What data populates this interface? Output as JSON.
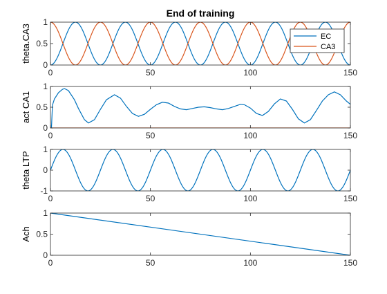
{
  "figure": {
    "title": "End of training"
  },
  "chart_data": [
    {
      "type": "line",
      "ylabel": "theta.CA3",
      "xlim": [
        0,
        150
      ],
      "ylim": [
        0,
        1
      ],
      "xticks": [
        0,
        50,
        100,
        150
      ],
      "yticks": [
        0,
        0.5,
        1
      ],
      "xtick_labels": [
        "0",
        "50",
        "100",
        "150"
      ],
      "ytick_labels": [
        "0",
        "0.5",
        "1"
      ],
      "grid": false,
      "legend": {
        "location": "right",
        "entries": [
          "EC",
          "CA3"
        ]
      },
      "series": [
        {
          "name": "EC",
          "color": "#0072BD",
          "function": "theta",
          "period": 25,
          "phase_shift": 0,
          "y_offset": 0.5,
          "amplitude": 0.5
        },
        {
          "name": "CA3",
          "color": "#D95319",
          "function": "theta",
          "period": 25,
          "phase_shift": 12.5,
          "y_offset": 0.5,
          "amplitude": 0.5
        }
      ]
    },
    {
      "type": "line",
      "ylabel": "act CA1",
      "xlim": [
        0,
        150
      ],
      "ylim": [
        0,
        1
      ],
      "xticks": [
        0,
        50,
        100,
        150
      ],
      "yticks": [
        0,
        0.5,
        1
      ],
      "xtick_labels": [
        "0",
        "50",
        "100",
        "150"
      ],
      "ytick_labels": [
        "0",
        "0.5",
        "1"
      ],
      "grid": false,
      "series": [
        {
          "color": "#0072BD",
          "points": [
            [
              0,
              0
            ],
            [
              0.5,
              0
            ],
            [
              1,
              0.55
            ],
            [
              2,
              0.7
            ],
            [
              4,
              0.85
            ],
            [
              6,
              0.93
            ],
            [
              7,
              0.95
            ],
            [
              9,
              0.9
            ],
            [
              12,
              0.68
            ],
            [
              14,
              0.47
            ],
            [
              17,
              0.2
            ],
            [
              19,
              0.12
            ],
            [
              22,
              0.2
            ],
            [
              25,
              0.45
            ],
            [
              28,
              0.68
            ],
            [
              32,
              0.8
            ],
            [
              35,
              0.72
            ],
            [
              38,
              0.52
            ],
            [
              41,
              0.35
            ],
            [
              44,
              0.28
            ],
            [
              47,
              0.33
            ],
            [
              50,
              0.45
            ],
            [
              53,
              0.56
            ],
            [
              56,
              0.62
            ],
            [
              59,
              0.6
            ],
            [
              62,
              0.52
            ],
            [
              65,
              0.46
            ],
            [
              68,
              0.44
            ],
            [
              71,
              0.47
            ],
            [
              74,
              0.5
            ],
            [
              77,
              0.51
            ],
            [
              80,
              0.49
            ],
            [
              83,
              0.46
            ],
            [
              86,
              0.44
            ],
            [
              89,
              0.47
            ],
            [
              92,
              0.52
            ],
            [
              95,
              0.57
            ],
            [
              97,
              0.56
            ],
            [
              100,
              0.48
            ],
            [
              103,
              0.35
            ],
            [
              106,
              0.3
            ],
            [
              109,
              0.4
            ],
            [
              112,
              0.58
            ],
            [
              115,
              0.7
            ],
            [
              118,
              0.65
            ],
            [
              121,
              0.45
            ],
            [
              124,
              0.22
            ],
            [
              127,
              0.12
            ],
            [
              130,
              0.2
            ],
            [
              133,
              0.42
            ],
            [
              136,
              0.65
            ],
            [
              139,
              0.8
            ],
            [
              142,
              0.87
            ],
            [
              145,
              0.8
            ],
            [
              148,
              0.65
            ],
            [
              150,
              0.57
            ]
          ]
        },
        {
          "color": "#D95319",
          "points": [
            [
              0,
              0
            ],
            [
              150,
              0
            ]
          ]
        }
      ]
    },
    {
      "type": "line",
      "ylabel": "theta LTP",
      "xlim": [
        0,
        150
      ],
      "ylim": [
        -1,
        1
      ],
      "xticks": [
        0,
        50,
        100,
        150
      ],
      "yticks": [
        -1,
        0,
        1
      ],
      "xtick_labels": [
        "0",
        "50",
        "100",
        "150"
      ],
      "ytick_labels": [
        "-1",
        "0",
        "1"
      ],
      "grid": false,
      "series": [
        {
          "color": "#0072BD",
          "function": "sine",
          "period": 25,
          "phase_shift": 0,
          "y_offset": 0,
          "amplitude": 1
        }
      ]
    },
    {
      "type": "line",
      "ylabel": "Ach",
      "xlim": [
        0,
        150
      ],
      "ylim": [
        0,
        1
      ],
      "xticks": [
        0,
        50,
        100,
        150
      ],
      "yticks": [
        0,
        0.5,
        1
      ],
      "xtick_labels": [
        "0",
        "50",
        "100",
        "150"
      ],
      "ytick_labels": [
        "0",
        "0.5",
        "1"
      ],
      "grid": false,
      "series": [
        {
          "color": "#0072BD",
          "points": [
            [
              0,
              1
            ],
            [
              150,
              0
            ]
          ]
        }
      ]
    }
  ]
}
